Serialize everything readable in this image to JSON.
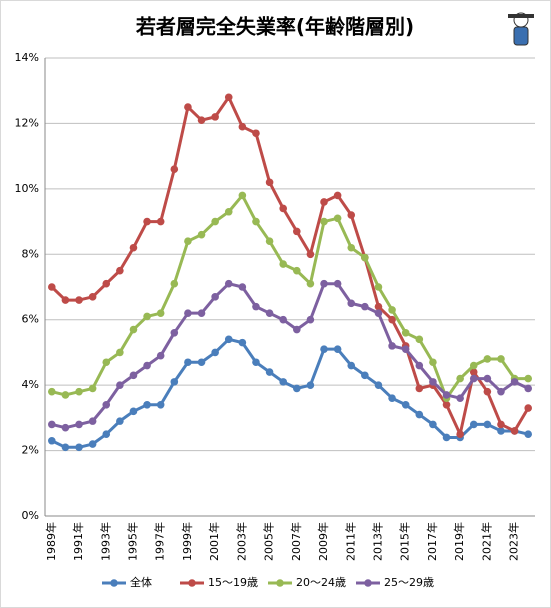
{
  "chart_data": {
    "type": "line",
    "title": "若者層完全失業率(年齢階層別)",
    "categories": [
      "1989年",
      null,
      "1991年",
      null,
      "1993年",
      null,
      "1995年",
      null,
      "1997年",
      null,
      "1999年",
      null,
      "2001年",
      null,
      "2003年",
      null,
      "2005年",
      null,
      "2007年",
      null,
      "2009年",
      null,
      "2011年",
      null,
      "2013年",
      null,
      "2015年",
      null,
      "2017年",
      null,
      "2019年",
      null,
      "2021年",
      null,
      "2023年",
      null
    ],
    "series": [
      {
        "name": "全体",
        "color": "#4a7ebb",
        "values": [
          2.3,
          2.1,
          2.1,
          2.2,
          2.5,
          2.9,
          3.2,
          3.4,
          3.4,
          4.1,
          4.7,
          4.7,
          5.0,
          5.4,
          5.3,
          4.7,
          4.4,
          4.1,
          3.9,
          4.0,
          5.1,
          5.1,
          4.6,
          4.3,
          4.0,
          3.6,
          3.4,
          3.1,
          2.8,
          2.4,
          2.4,
          2.8,
          2.8,
          2.6,
          2.6,
          2.5
        ]
      },
      {
        "name": "15～19歳",
        "color": "#be4b48",
        "values": [
          7.0,
          6.6,
          6.6,
          6.7,
          7.1,
          7.5,
          8.2,
          9.0,
          9.0,
          10.6,
          12.5,
          12.1,
          12.2,
          12.8,
          11.9,
          11.7,
          10.2,
          9.4,
          8.7,
          8.0,
          9.6,
          9.8,
          9.2,
          7.9,
          6.4,
          6.0,
          5.2,
          3.9,
          4.0,
          3.4,
          2.5,
          4.4,
          3.8,
          2.8,
          2.6,
          3.3
        ]
      },
      {
        "name": "20～24歳",
        "color": "#98b954",
        "values": [
          3.8,
          3.7,
          3.8,
          3.9,
          4.7,
          5.0,
          5.7,
          6.1,
          6.2,
          7.1,
          8.4,
          8.6,
          9.0,
          9.3,
          9.8,
          9.0,
          8.4,
          7.7,
          7.5,
          7.1,
          9.0,
          9.1,
          8.2,
          7.9,
          7.0,
          6.3,
          5.6,
          5.4,
          4.7,
          3.6,
          4.2,
          4.6,
          4.8,
          4.8,
          4.2,
          4.2
        ]
      },
      {
        "name": "25～29歳",
        "color": "#7d60a0",
        "values": [
          2.8,
          2.7,
          2.8,
          2.9,
          3.4,
          4.0,
          4.3,
          4.6,
          4.9,
          5.6,
          6.2,
          6.2,
          6.7,
          7.1,
          7.0,
          6.4,
          6.2,
          6.0,
          5.7,
          6.0,
          7.1,
          7.1,
          6.5,
          6.4,
          6.2,
          5.2,
          5.1,
          4.6,
          4.1,
          3.7,
          3.6,
          4.2,
          4.2,
          3.8,
          4.1,
          3.9
        ]
      }
    ],
    "ylim": [
      0,
      14
    ],
    "yticks": [
      {
        "value": 0,
        "label": "0%"
      },
      {
        "value": 2,
        "label": "2%"
      },
      {
        "value": 4,
        "label": "4%"
      },
      {
        "value": 6,
        "label": "6%"
      },
      {
        "value": 8,
        "label": "8%"
      },
      {
        "value": 10,
        "label": "10%"
      },
      {
        "value": 12,
        "label": "12%"
      },
      {
        "value": 14,
        "label": "14%"
      }
    ],
    "grid": true
  }
}
